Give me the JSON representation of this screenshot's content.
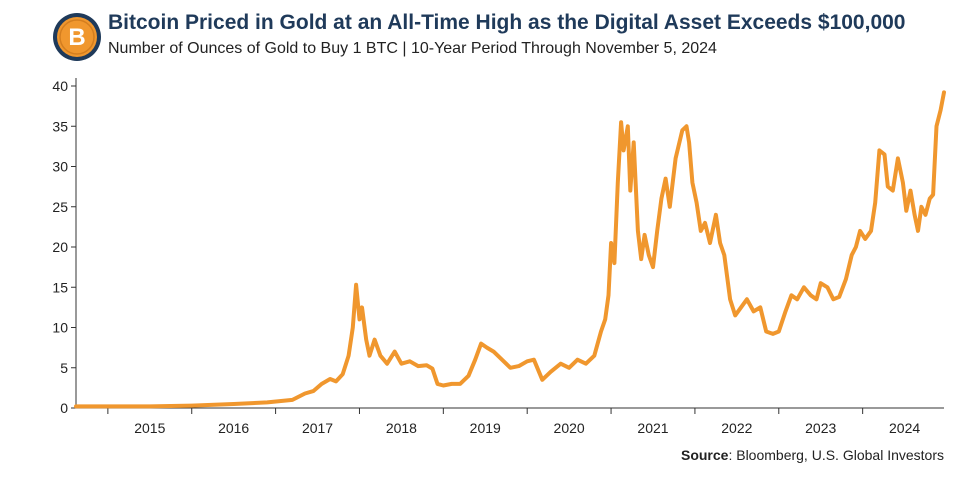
{
  "header": {
    "title": "Bitcoin Priced in Gold at an All-Time High as the Digital Asset Exceeds $100,000",
    "subtitle": "Number of Ounces of Gold to Buy 1 BTC | 10-Year Period Through November 5, 2024",
    "logo_icon": "bitcoin-coin-icon",
    "logo_letter": "B"
  },
  "source": {
    "label": "Source",
    "text": ": Bloomberg, U.S. Global Investors"
  },
  "colors": {
    "line": "#f0972e",
    "axis": "#333333",
    "title": "#1f3a5a",
    "coin": "#f0972e"
  },
  "chart_data": {
    "type": "line",
    "title": "Bitcoin Priced in Gold at an All-Time High as the Digital Asset Exceeds $100,000",
    "xlabel": "",
    "ylabel": "",
    "ylim": [
      0,
      40
    ],
    "yticks": [
      0,
      5,
      10,
      15,
      20,
      25,
      30,
      35,
      40
    ],
    "xlim": [
      2014.62,
      2024.97
    ],
    "xticks": [
      "2015",
      "2016",
      "2017",
      "2018",
      "2019",
      "2020",
      "2021",
      "2022",
      "2023",
      "2024"
    ],
    "grid": false,
    "legend": "none",
    "series": [
      {
        "values": [
          [
            2014.62,
            0.2
          ],
          [
            2015.0,
            0.2
          ],
          [
            2015.5,
            0.2
          ],
          [
            2016.0,
            0.3
          ],
          [
            2016.5,
            0.5
          ],
          [
            2016.9,
            0.7
          ],
          [
            2017.2,
            1.0
          ],
          [
            2017.35,
            1.8
          ],
          [
            2017.45,
            2.1
          ],
          [
            2017.55,
            3.0
          ],
          [
            2017.65,
            3.6
          ],
          [
            2017.72,
            3.3
          ],
          [
            2017.8,
            4.2
          ],
          [
            2017.87,
            6.5
          ],
          [
            2017.92,
            10.0
          ],
          [
            2017.96,
            15.3
          ],
          [
            2018.0,
            11.0
          ],
          [
            2018.03,
            12.5
          ],
          [
            2018.08,
            8.5
          ],
          [
            2018.12,
            6.5
          ],
          [
            2018.18,
            8.5
          ],
          [
            2018.25,
            6.5
          ],
          [
            2018.33,
            5.5
          ],
          [
            2018.42,
            7.0
          ],
          [
            2018.5,
            5.5
          ],
          [
            2018.6,
            5.8
          ],
          [
            2018.7,
            5.2
          ],
          [
            2018.8,
            5.3
          ],
          [
            2018.87,
            4.9
          ],
          [
            2018.93,
            3.0
          ],
          [
            2019.0,
            2.8
          ],
          [
            2019.1,
            3.0
          ],
          [
            2019.2,
            3.0
          ],
          [
            2019.3,
            4.0
          ],
          [
            2019.38,
            6.0
          ],
          [
            2019.45,
            8.0
          ],
          [
            2019.52,
            7.5
          ],
          [
            2019.6,
            7.0
          ],
          [
            2019.7,
            6.0
          ],
          [
            2019.8,
            5.0
          ],
          [
            2019.9,
            5.2
          ],
          [
            2020.0,
            5.8
          ],
          [
            2020.08,
            6.0
          ],
          [
            2020.18,
            3.5
          ],
          [
            2020.28,
            4.5
          ],
          [
            2020.4,
            5.5
          ],
          [
            2020.5,
            5.0
          ],
          [
            2020.6,
            6.0
          ],
          [
            2020.7,
            5.5
          ],
          [
            2020.8,
            6.5
          ],
          [
            2020.88,
            9.5
          ],
          [
            2020.93,
            11.0
          ],
          [
            2020.97,
            14.0
          ],
          [
            2021.0,
            20.5
          ],
          [
            2021.04,
            18.0
          ],
          [
            2021.08,
            28.0
          ],
          [
            2021.12,
            35.5
          ],
          [
            2021.15,
            32.0
          ],
          [
            2021.2,
            35.0
          ],
          [
            2021.23,
            27.0
          ],
          [
            2021.27,
            33.0
          ],
          [
            2021.32,
            22.0
          ],
          [
            2021.36,
            18.5
          ],
          [
            2021.4,
            21.5
          ],
          [
            2021.45,
            19.0
          ],
          [
            2021.5,
            17.5
          ],
          [
            2021.55,
            22.0
          ],
          [
            2021.6,
            26.0
          ],
          [
            2021.65,
            28.5
          ],
          [
            2021.7,
            25.0
          ],
          [
            2021.77,
            31.0
          ],
          [
            2021.85,
            34.5
          ],
          [
            2021.9,
            35.0
          ],
          [
            2021.93,
            33.0
          ],
          [
            2021.97,
            28.0
          ],
          [
            2022.02,
            25.5
          ],
          [
            2022.07,
            22.0
          ],
          [
            2022.12,
            23.0
          ],
          [
            2022.18,
            20.5
          ],
          [
            2022.25,
            24.0
          ],
          [
            2022.3,
            20.5
          ],
          [
            2022.35,
            19.0
          ],
          [
            2022.42,
            13.5
          ],
          [
            2022.48,
            11.5
          ],
          [
            2022.55,
            12.5
          ],
          [
            2022.62,
            13.5
          ],
          [
            2022.7,
            12.0
          ],
          [
            2022.78,
            12.5
          ],
          [
            2022.85,
            9.5
          ],
          [
            2022.93,
            9.2
          ],
          [
            2023.0,
            9.5
          ],
          [
            2023.08,
            12.0
          ],
          [
            2023.15,
            14.0
          ],
          [
            2023.22,
            13.5
          ],
          [
            2023.3,
            15.0
          ],
          [
            2023.38,
            14.0
          ],
          [
            2023.45,
            13.5
          ],
          [
            2023.5,
            15.5
          ],
          [
            2023.58,
            15.0
          ],
          [
            2023.65,
            13.5
          ],
          [
            2023.72,
            13.8
          ],
          [
            2023.8,
            16.0
          ],
          [
            2023.87,
            19.0
          ],
          [
            2023.92,
            20.0
          ],
          [
            2023.97,
            22.0
          ],
          [
            2024.03,
            21.0
          ],
          [
            2024.1,
            22.0
          ],
          [
            2024.15,
            25.5
          ],
          [
            2024.2,
            32.0
          ],
          [
            2024.26,
            31.5
          ],
          [
            2024.3,
            27.5
          ],
          [
            2024.36,
            27.0
          ],
          [
            2024.42,
            31.0
          ],
          [
            2024.48,
            28.0
          ],
          [
            2024.52,
            24.5
          ],
          [
            2024.57,
            27.0
          ],
          [
            2024.62,
            24.0
          ],
          [
            2024.66,
            22.0
          ],
          [
            2024.7,
            25.0
          ],
          [
            2024.75,
            24.0
          ],
          [
            2024.8,
            26.0
          ],
          [
            2024.84,
            26.5
          ],
          [
            2024.88,
            35.0
          ],
          [
            2024.93,
            37.0
          ],
          [
            2024.97,
            39.2
          ]
        ]
      }
    ]
  }
}
